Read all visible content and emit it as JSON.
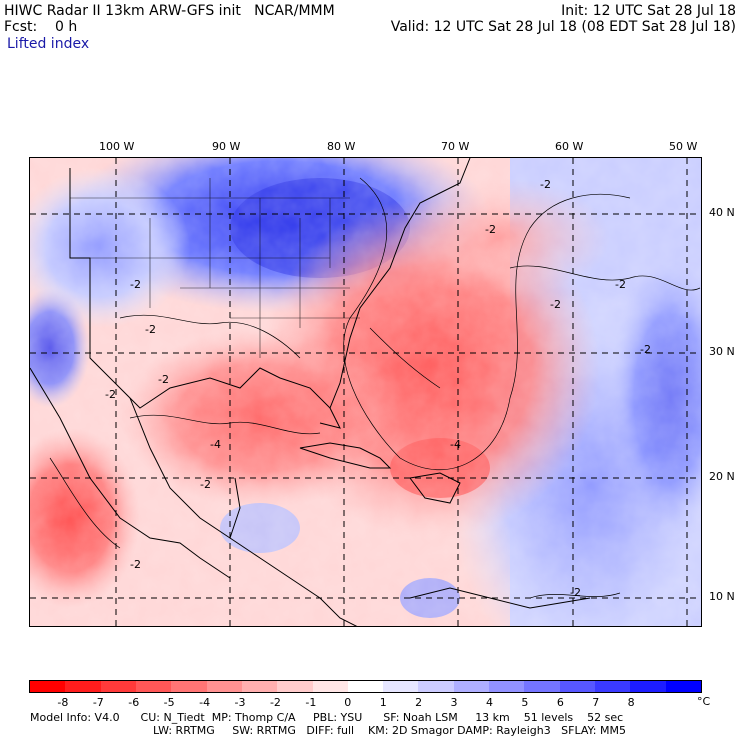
{
  "header": {
    "title_line": "HIWC Radar II 13km ARW-GFS init   NCAR/MMM",
    "init": "Init: 12 UTC Sat 28 Jul 18",
    "forecast": "Fcst:    0 h",
    "valid": "Valid: 12 UTC Sat 28 Jul 18 (08 EDT Sat 28 Jul 18)",
    "field": "Lifted index"
  },
  "map": {
    "lon_labels": [
      "100 W",
      "90 W",
      "80 W",
      "70 W",
      "60 W",
      "50 W"
    ],
    "lat_labels": [
      "40 N",
      "30 N",
      "20 N",
      "10 N"
    ],
    "contour_labels": [
      "-2",
      "-2",
      "-2",
      "-2",
      "-2",
      "-2",
      "-2",
      "-2",
      "-4",
      "-4",
      "-2",
      "-2",
      "-2",
      "-2"
    ]
  },
  "legend": {
    "ticks": [
      "-8",
      "-7",
      "-6",
      "-5",
      "-4",
      "-3",
      "-2",
      "-1",
      "0",
      "1",
      "2",
      "3",
      "4",
      "5",
      "6",
      "7",
      "8"
    ],
    "unit": "°C",
    "colors": [
      "#ff0000",
      "#ff1d1d",
      "#ff3a3a",
      "#ff5757",
      "#ff7575",
      "#ff9292",
      "#ffafaf",
      "#ffcccc",
      "#ffe6e6",
      "#ffffff",
      "#e6e6ff",
      "#ccccff",
      "#afafff",
      "#9292ff",
      "#7575ff",
      "#5757ff",
      "#3a3aff",
      "#1d1dff",
      "#0000ff"
    ]
  },
  "footer": {
    "line1": "Model Info: V4.0      CU: N_Tiedt  MP: Thomp C/A     PBL: YSU      SF: Noah LSM     13 km    51 levels    52 sec",
    "line2": "LW: RRTMG     SW: RRTMG   DIFF: full    KM: 2D Smagor DAMP: Rayleigh3   SFLAY: MM5"
  }
}
